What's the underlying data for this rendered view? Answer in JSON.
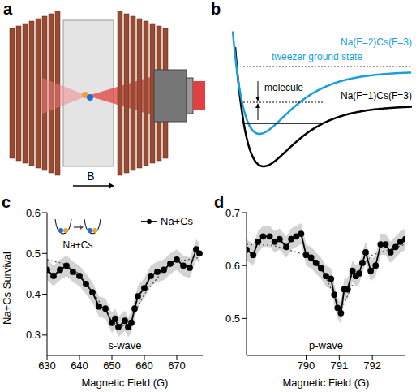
{
  "diagram_a": {
    "label": "a",
    "field": "B"
  },
  "diagram_b": {
    "label": "b",
    "upper_state": "Na(F=2)Cs(F=3)",
    "lower_state": "Na(F=1)Cs(F=3)",
    "tweezer": "tweezer ground state",
    "molecule": "molecule",
    "upper_color": "#1a9fd9"
  },
  "chart_data": [
    {
      "type": "line",
      "panel": "c",
      "xlabel": "Magnetic Field (G)",
      "ylabel": "Na+Cs Survival",
      "annotation": "s-wave",
      "inset_label": "Na+Cs",
      "legend": "upper right",
      "xlim": [
        630,
        678
      ],
      "xticks": [
        630,
        640,
        650,
        660,
        670
      ],
      "ylim": [
        0.25,
        0.6
      ],
      "yticks": [
        0.3,
        0.4,
        0.5,
        0.6
      ],
      "series": [
        {
          "name": "Na+Cs",
          "color": "#000000",
          "marker": "circle",
          "x": [
            630,
            632,
            634,
            636,
            638,
            640,
            642,
            644,
            646,
            648,
            650,
            651,
            652,
            654,
            655,
            656,
            657,
            658,
            660,
            662,
            664,
            666,
            668,
            670,
            672,
            674,
            676,
            677
          ],
          "values": [
            0.46,
            0.445,
            0.46,
            0.47,
            0.455,
            0.445,
            0.425,
            0.405,
            0.37,
            0.365,
            0.33,
            0.34,
            0.32,
            0.335,
            0.32,
            0.33,
            0.365,
            0.395,
            0.415,
            0.445,
            0.455,
            0.46,
            0.475,
            0.485,
            0.47,
            0.465,
            0.51,
            0.5
          ],
          "errors": [
            0.025,
            0.025,
            0.025,
            0.025,
            0.025,
            0.025,
            0.025,
            0.025,
            0.025,
            0.025,
            0.025,
            0.025,
            0.025,
            0.025,
            0.025,
            0.025,
            0.025,
            0.025,
            0.025,
            0.025,
            0.025,
            0.025,
            0.025,
            0.025,
            0.025,
            0.025,
            0.025,
            0.025
          ]
        },
        {
          "color": "#555555",
          "line_style": "dotted",
          "x": [
            630,
            635,
            640,
            645,
            650,
            653,
            656,
            660,
            665,
            670,
            677
          ],
          "values": [
            0.485,
            0.475,
            0.45,
            0.395,
            0.335,
            0.32,
            0.34,
            0.4,
            0.45,
            0.48,
            0.49
          ]
        }
      ]
    },
    {
      "type": "line",
      "panel": "d",
      "xlabel": "Magnetic Field (G)",
      "annotation": "p-wave",
      "xlim": [
        788.2,
        793
      ],
      "xticks": [
        790,
        791,
        792
      ],
      "ylim": [
        0.43,
        0.7
      ],
      "yticks": [
        0.5,
        0.6,
        0.7
      ],
      "series": [
        {
          "color": "#000000",
          "marker": "circle",
          "x": [
            788.2,
            788.4,
            788.55,
            788.7,
            788.9,
            789.05,
            789.2,
            789.4,
            789.55,
            789.7,
            789.85,
            790.0,
            790.15,
            790.3,
            790.45,
            790.6,
            790.75,
            790.85,
            790.95,
            791.05,
            791.15,
            791.25,
            791.4,
            791.5,
            791.6,
            791.7,
            791.8,
            791.95,
            792.1,
            792.25,
            792.4,
            792.55,
            792.7,
            792.85,
            793.0
          ],
          "values": [
            0.63,
            0.62,
            0.645,
            0.655,
            0.655,
            0.645,
            0.65,
            0.635,
            0.65,
            0.655,
            0.66,
            0.62,
            0.615,
            0.605,
            0.595,
            0.58,
            0.575,
            0.545,
            0.52,
            0.51,
            0.555,
            0.555,
            0.59,
            0.58,
            0.585,
            0.605,
            0.625,
            0.59,
            0.6,
            0.64,
            0.64,
            0.625,
            0.635,
            0.645,
            0.65
          ],
          "errors": [
            0.02,
            0.02,
            0.02,
            0.02,
            0.02,
            0.02,
            0.02,
            0.02,
            0.02,
            0.02,
            0.02,
            0.02,
            0.02,
            0.02,
            0.02,
            0.02,
            0.02,
            0.02,
            0.02,
            0.02,
            0.02,
            0.02,
            0.02,
            0.02,
            0.02,
            0.02,
            0.02,
            0.02,
            0.02,
            0.02,
            0.02,
            0.02,
            0.02,
            0.02,
            0.02
          ]
        },
        {
          "color": "#555555",
          "line_style": "dotted",
          "x": [
            788.2,
            789,
            790,
            790.5,
            790.8,
            791.05,
            791.3,
            791.6,
            792,
            793
          ],
          "values": [
            0.64,
            0.638,
            0.62,
            0.59,
            0.55,
            0.515,
            0.55,
            0.59,
            0.62,
            0.64
          ]
        }
      ]
    }
  ]
}
